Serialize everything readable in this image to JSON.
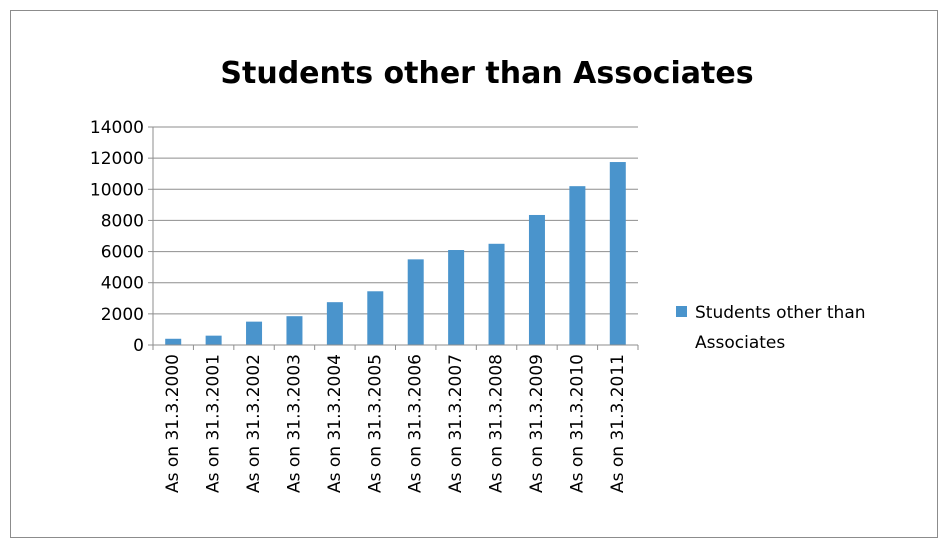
{
  "chart_data": {
    "type": "bar",
    "title": "Students other than Associates",
    "xlabel": "",
    "ylabel": "",
    "categories": [
      "As on 31.3.2000",
      "As on 31.3.2001",
      "As on 31.3.2002",
      "As on 31.3.2003",
      "As on 31.3.2004",
      "As on 31.3.2005",
      "As on 31.3.2006",
      "As on 31.3.2007",
      "As on 31.3.2008",
      "As on 31.3.2009",
      "As on 31.3.2010",
      "As on 31.3.2011"
    ],
    "series": [
      {
        "name": "Students other than Associates",
        "values": [
          400,
          600,
          1500,
          1850,
          2750,
          3450,
          5500,
          6100,
          6500,
          8350,
          10200,
          11750
        ],
        "color": "#4a94cc"
      }
    ],
    "ylim": [
      0,
      14000
    ],
    "yticks": [
      0,
      2000,
      4000,
      6000,
      8000,
      10000,
      12000,
      14000
    ],
    "grid": true,
    "legend_position": "right"
  }
}
